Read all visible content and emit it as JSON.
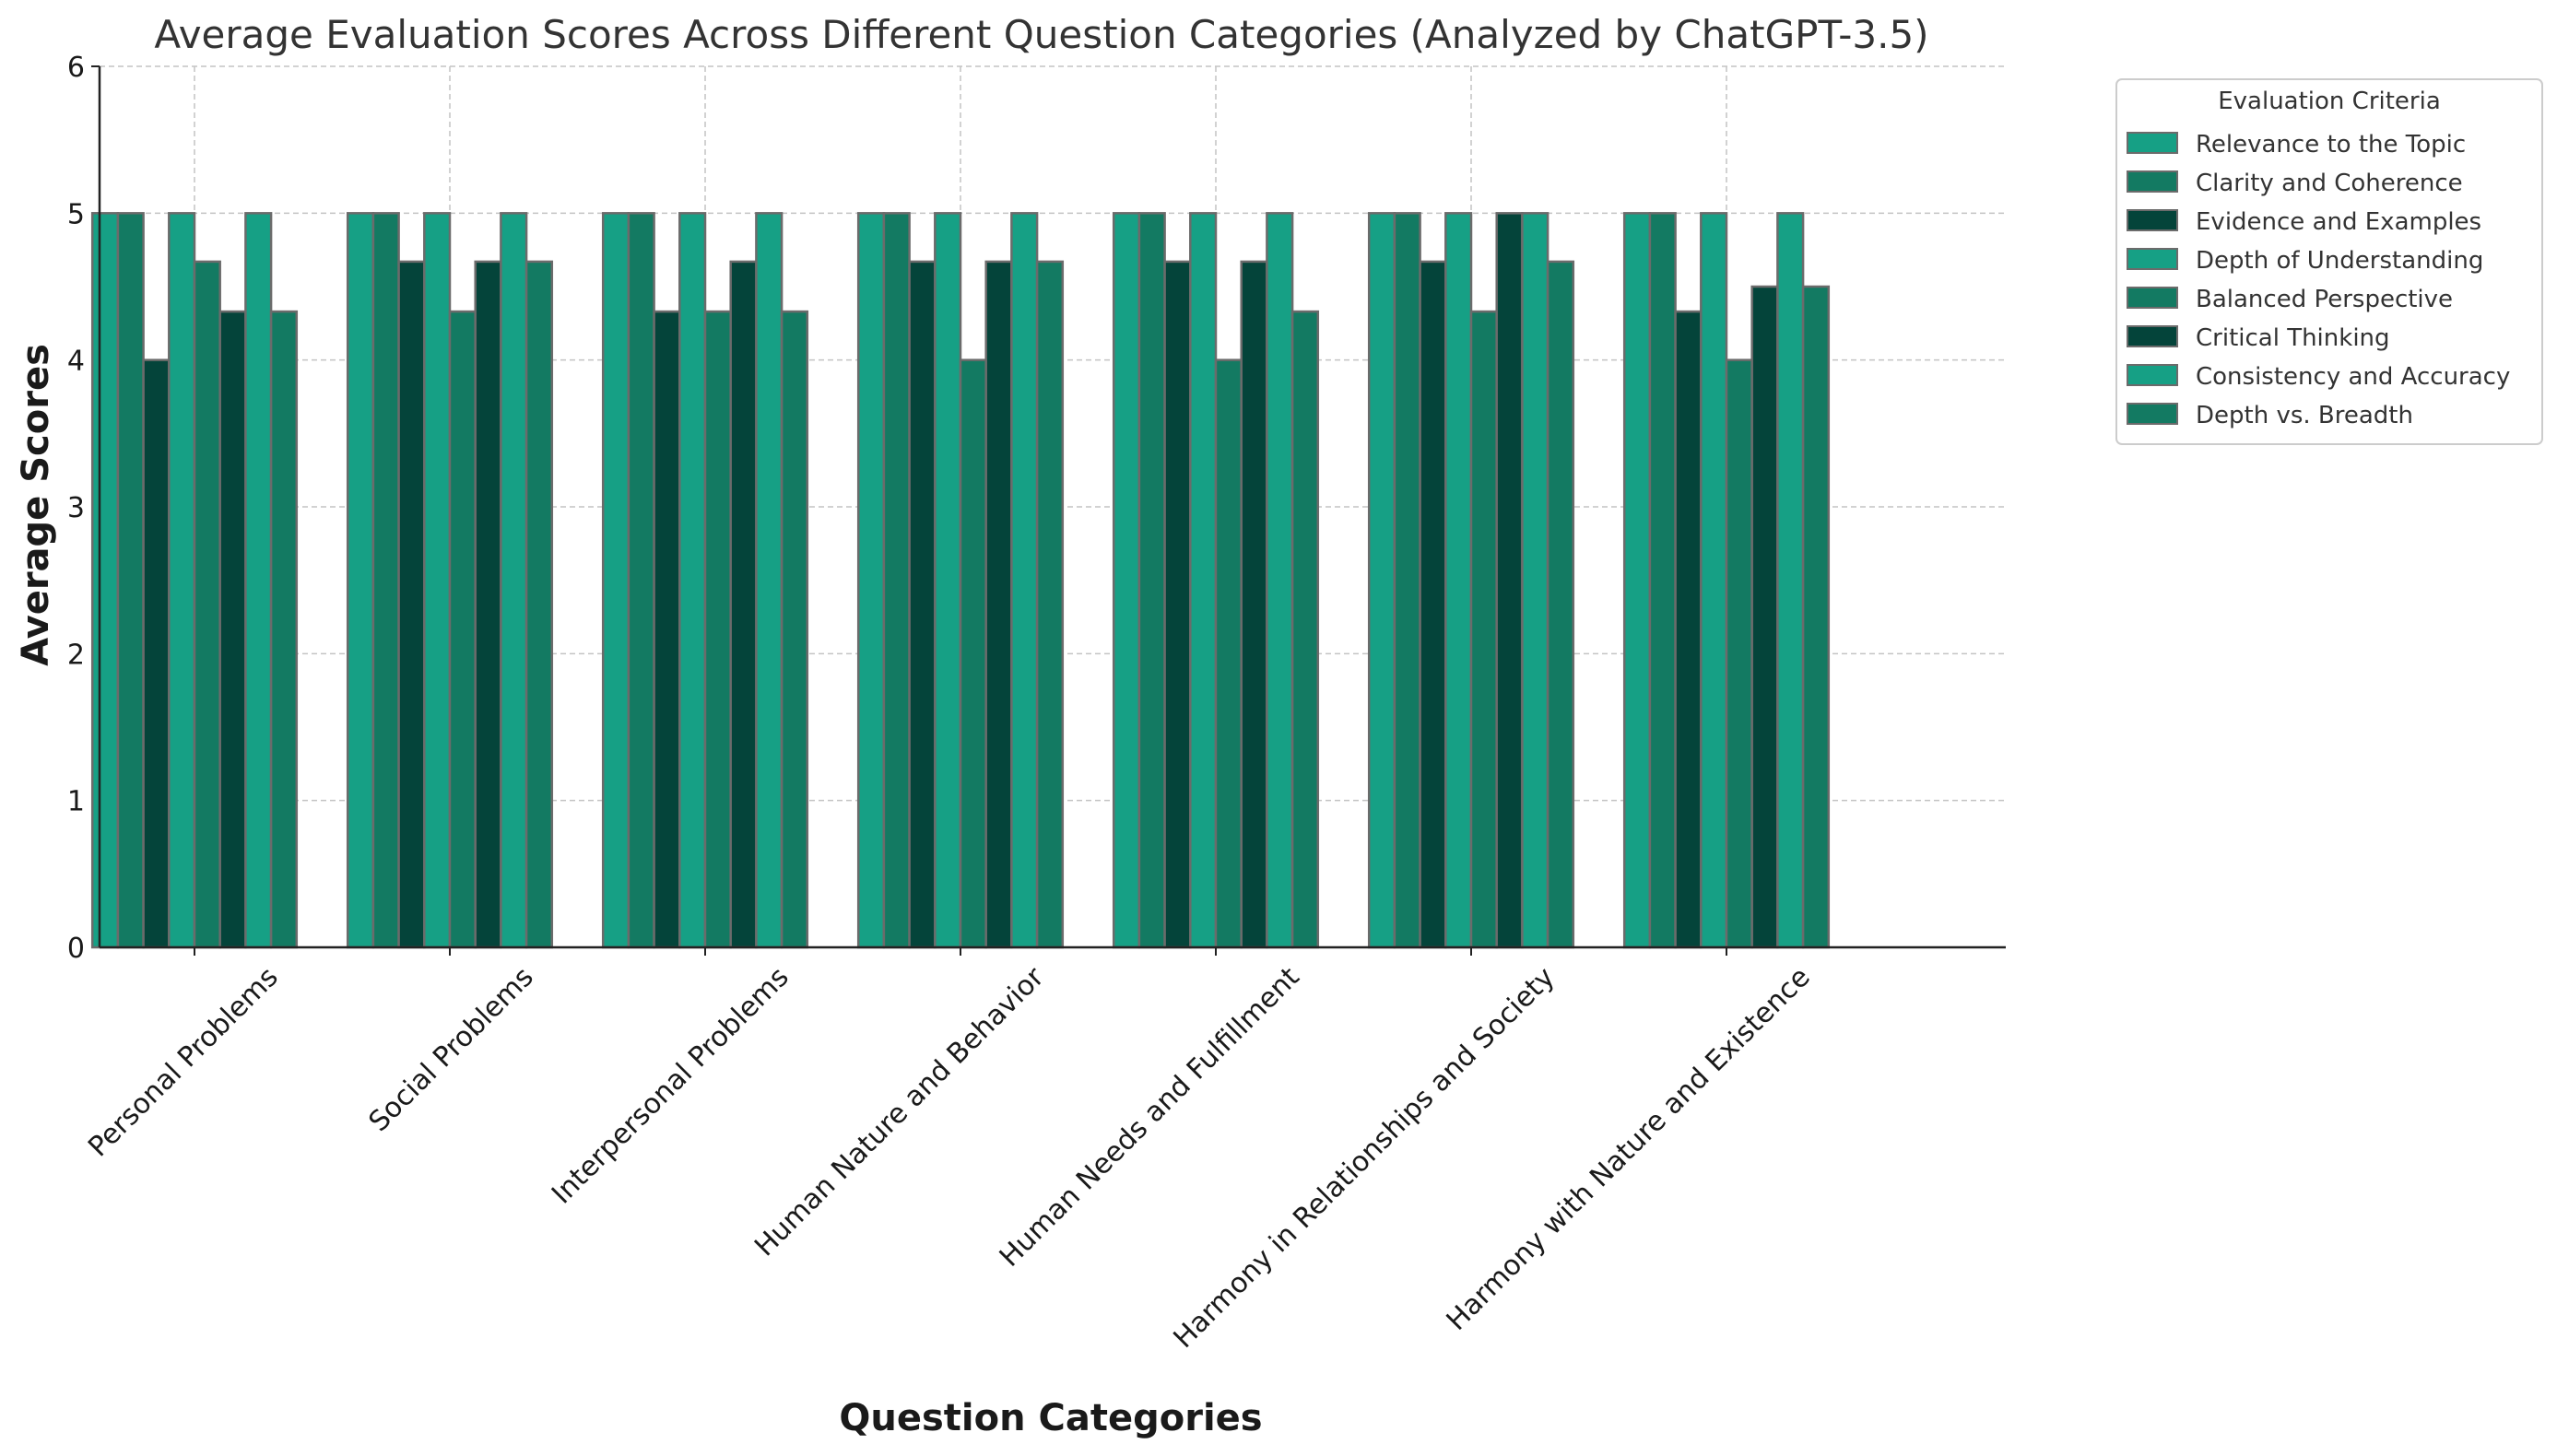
{
  "chart_data": {
    "type": "bar",
    "title": "Average Evaluation Scores Across Different Question Categories (Analyzed by ChatGPT-3.5)",
    "xlabel": "Question Categories",
    "ylabel": "Average Scores",
    "ylim": [
      0,
      6
    ],
    "yticks": [
      0,
      1,
      2,
      3,
      4,
      5,
      6
    ],
    "grid": true,
    "legend_title": "Evaluation Criteria",
    "legend_position": "outside right, top",
    "categories": [
      "Personal Problems",
      "Social Problems",
      "Interpersonal Problems",
      "Human Nature and Behavior",
      "Human Needs and Fulfillment",
      "Harmony in Relationships and Society",
      "Harmony with Nature and Existence"
    ],
    "series": [
      {
        "name": "Relevance to the Topic",
        "color": "#16a085",
        "values": [
          5,
          5,
          5,
          5,
          5,
          5,
          5
        ]
      },
      {
        "name": "Clarity and Coherence",
        "color": "#137a62",
        "values": [
          5,
          5,
          5,
          5,
          5,
          5,
          5
        ]
      },
      {
        "name": "Evidence and Examples",
        "color": "#04443a",
        "values": [
          4,
          4.67,
          4.33,
          4.67,
          4.67,
          4.67,
          4.33
        ]
      },
      {
        "name": "Depth of Understanding",
        "color": "#16a085",
        "values": [
          5,
          5,
          5,
          5,
          5,
          5,
          5
        ]
      },
      {
        "name": "Balanced Perspective",
        "color": "#137a62",
        "values": [
          4.67,
          4.33,
          4.33,
          4,
          4,
          4.33,
          4
        ]
      },
      {
        "name": "Critical Thinking",
        "color": "#04443a",
        "values": [
          4.33,
          4.67,
          4.67,
          4.67,
          4.67,
          5,
          4.5
        ]
      },
      {
        "name": "Consistency and Accuracy",
        "color": "#16a085",
        "values": [
          5,
          5,
          5,
          5,
          5,
          5,
          5
        ]
      },
      {
        "name": "Depth vs. Breadth",
        "color": "#137a62",
        "values": [
          4.33,
          4.67,
          4.33,
          4.67,
          4.33,
          4.67,
          4.5
        ]
      }
    ]
  }
}
